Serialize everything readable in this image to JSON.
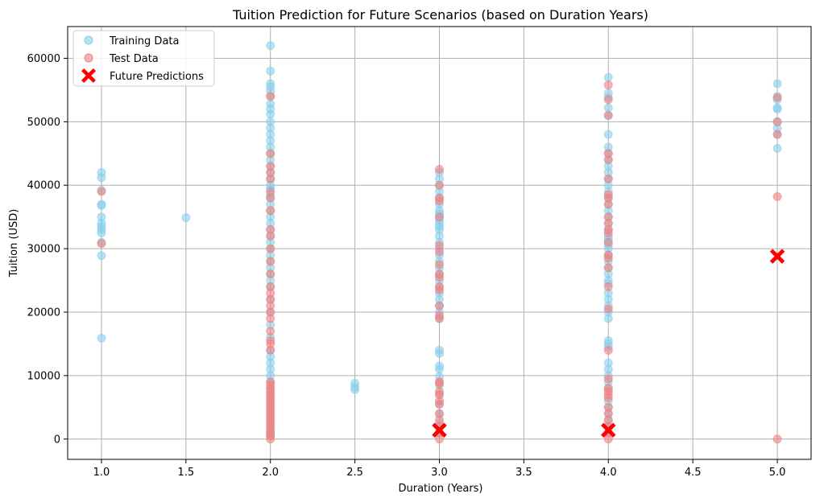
{
  "chart_data": {
    "type": "scatter",
    "title": "Tuition Prediction for Future Scenarios (based on Duration Years)",
    "xlabel": "Duration (Years)",
    "ylabel": "Tuition (USD)",
    "xlim": [
      0.8,
      5.2
    ],
    "ylim": [
      -3200,
      65000
    ],
    "xticks": [
      "1.0",
      "1.5",
      "2.0",
      "2.5",
      "3.0",
      "3.5",
      "4.0",
      "4.5",
      "5.0"
    ],
    "yticks": [
      "0",
      "10000",
      "20000",
      "30000",
      "40000",
      "50000",
      "60000"
    ],
    "grid": true,
    "legend_position": "top-left",
    "series": [
      {
        "name": "Training Data",
        "color": "#87CEEB",
        "marker": "circle",
        "points": [
          [
            1.0,
            42000
          ],
          [
            1.0,
            41200
          ],
          [
            1.0,
            39200
          ],
          [
            1.0,
            37000
          ],
          [
            1.0,
            36800
          ],
          [
            1.0,
            35000
          ],
          [
            1.0,
            34000
          ],
          [
            1.0,
            33500
          ],
          [
            1.0,
            33000
          ],
          [
            1.0,
            32500
          ],
          [
            1.0,
            31000
          ],
          [
            1.0,
            28900
          ],
          [
            1.0,
            15900
          ],
          [
            1.5,
            34900
          ],
          [
            2.0,
            62000
          ],
          [
            2.0,
            58000
          ],
          [
            2.0,
            56000
          ],
          [
            2.0,
            55500
          ],
          [
            2.0,
            54800
          ],
          [
            2.0,
            54000
          ],
          [
            2.0,
            52800
          ],
          [
            2.0,
            52000
          ],
          [
            2.0,
            51200
          ],
          [
            2.0,
            50000
          ],
          [
            2.0,
            49000
          ],
          [
            2.0,
            48000
          ],
          [
            2.0,
            47000
          ],
          [
            2.0,
            46000
          ],
          [
            2.0,
            45000
          ],
          [
            2.0,
            44000
          ],
          [
            2.0,
            43000
          ],
          [
            2.0,
            42000
          ],
          [
            2.0,
            41000
          ],
          [
            2.0,
            40000
          ],
          [
            2.0,
            39500
          ],
          [
            2.0,
            38500
          ],
          [
            2.0,
            38000
          ],
          [
            2.0,
            37000
          ],
          [
            2.0,
            36000
          ],
          [
            2.0,
            35000
          ],
          [
            2.0,
            34000
          ],
          [
            2.0,
            33000
          ],
          [
            2.0,
            32000
          ],
          [
            2.0,
            31000
          ],
          [
            2.0,
            30000
          ],
          [
            2.0,
            29000
          ],
          [
            2.0,
            28000
          ],
          [
            2.0,
            27000
          ],
          [
            2.0,
            26000
          ],
          [
            2.0,
            25000
          ],
          [
            2.0,
            24000
          ],
          [
            2.0,
            22000
          ],
          [
            2.0,
            20000
          ],
          [
            2.0,
            18000
          ],
          [
            2.0,
            16000
          ],
          [
            2.0,
            14000
          ],
          [
            2.0,
            13000
          ],
          [
            2.0,
            12000
          ],
          [
            2.0,
            11000
          ],
          [
            2.0,
            10000
          ],
          [
            2.0,
            9000
          ],
          [
            2.0,
            8000
          ],
          [
            2.0,
            7000
          ],
          [
            2.0,
            6000
          ],
          [
            2.0,
            5000
          ],
          [
            2.0,
            4000
          ],
          [
            2.0,
            3000
          ],
          [
            2.0,
            2000
          ],
          [
            2.0,
            1000
          ],
          [
            2.0,
            500
          ],
          [
            2.5,
            8800
          ],
          [
            2.5,
            8200
          ],
          [
            2.5,
            7800
          ],
          [
            3.0,
            42000
          ],
          [
            3.0,
            41000
          ],
          [
            3.0,
            40000
          ],
          [
            3.0,
            39000
          ],
          [
            3.0,
            38000
          ],
          [
            3.0,
            37000
          ],
          [
            3.0,
            36000
          ],
          [
            3.0,
            35500
          ],
          [
            3.0,
            35000
          ],
          [
            3.0,
            34500
          ],
          [
            3.0,
            34000
          ],
          [
            3.0,
            33500
          ],
          [
            3.0,
            33000
          ],
          [
            3.0,
            32000
          ],
          [
            3.0,
            31000
          ],
          [
            3.0,
            30000
          ],
          [
            3.0,
            29000
          ],
          [
            3.0,
            28000
          ],
          [
            3.0,
            27000
          ],
          [
            3.0,
            26000
          ],
          [
            3.0,
            25000
          ],
          [
            3.0,
            24000
          ],
          [
            3.0,
            23000
          ],
          [
            3.0,
            22000
          ],
          [
            3.0,
            21000
          ],
          [
            3.0,
            20000
          ],
          [
            3.0,
            19000
          ],
          [
            3.0,
            14000
          ],
          [
            3.0,
            13500
          ],
          [
            3.0,
            11500
          ],
          [
            3.0,
            11000
          ],
          [
            3.0,
            9800
          ],
          [
            3.0,
            8500
          ],
          [
            3.0,
            7000
          ],
          [
            3.0,
            5500
          ],
          [
            3.0,
            4000
          ],
          [
            3.0,
            2500
          ],
          [
            3.0,
            1000
          ],
          [
            4.0,
            57000
          ],
          [
            4.0,
            54500
          ],
          [
            4.0,
            53800
          ],
          [
            4.0,
            52200
          ],
          [
            4.0,
            51000
          ],
          [
            4.0,
            48000
          ],
          [
            4.0,
            46000
          ],
          [
            4.0,
            45000
          ],
          [
            4.0,
            44000
          ],
          [
            4.0,
            43000
          ],
          [
            4.0,
            42000
          ],
          [
            4.0,
            41000
          ],
          [
            4.0,
            40000
          ],
          [
            4.0,
            39000
          ],
          [
            4.0,
            38000
          ],
          [
            4.0,
            37000
          ],
          [
            4.0,
            36000
          ],
          [
            4.0,
            35000
          ],
          [
            4.0,
            34000
          ],
          [
            4.0,
            33000
          ],
          [
            4.0,
            32000
          ],
          [
            4.0,
            31500
          ],
          [
            4.0,
            31000
          ],
          [
            4.0,
            30500
          ],
          [
            4.0,
            30000
          ],
          [
            4.0,
            29000
          ],
          [
            4.0,
            28000
          ],
          [
            4.0,
            27000
          ],
          [
            4.0,
            26000
          ],
          [
            4.0,
            25000
          ],
          [
            4.0,
            24500
          ],
          [
            4.0,
            23000
          ],
          [
            4.0,
            22000
          ],
          [
            4.0,
            21000
          ],
          [
            4.0,
            20000
          ],
          [
            4.0,
            19000
          ],
          [
            4.0,
            15500
          ],
          [
            4.0,
            15000
          ],
          [
            4.0,
            14500
          ],
          [
            4.0,
            12000
          ],
          [
            4.0,
            11000
          ],
          [
            4.0,
            10000
          ],
          [
            4.0,
            9000
          ],
          [
            4.0,
            8000
          ],
          [
            4.0,
            6000
          ],
          [
            4.0,
            5000
          ],
          [
            4.0,
            4000
          ],
          [
            4.0,
            3000
          ],
          [
            4.0,
            2000
          ],
          [
            4.0,
            1000
          ],
          [
            5.0,
            56000
          ],
          [
            5.0,
            54000
          ],
          [
            5.0,
            53500
          ],
          [
            5.0,
            52200
          ],
          [
            5.0,
            52000
          ],
          [
            5.0,
            50000
          ],
          [
            5.0,
            49000
          ],
          [
            5.0,
            48000
          ],
          [
            5.0,
            45800
          ]
        ]
      },
      {
        "name": "Test Data",
        "color": "#F08080",
        "marker": "circle",
        "points": [
          [
            1.0,
            39000
          ],
          [
            1.0,
            30800
          ],
          [
            2.0,
            54000
          ],
          [
            2.0,
            45000
          ],
          [
            2.0,
            43000
          ],
          [
            2.0,
            42000
          ],
          [
            2.0,
            41000
          ],
          [
            2.0,
            39000
          ],
          [
            2.0,
            38000
          ],
          [
            2.0,
            36000
          ],
          [
            2.0,
            33000
          ],
          [
            2.0,
            32000
          ],
          [
            2.0,
            30000
          ],
          [
            2.0,
            28000
          ],
          [
            2.0,
            26000
          ],
          [
            2.0,
            24000
          ],
          [
            2.0,
            23000
          ],
          [
            2.0,
            22000
          ],
          [
            2.0,
            21000
          ],
          [
            2.0,
            20000
          ],
          [
            2.0,
            19000
          ],
          [
            2.0,
            17000
          ],
          [
            2.0,
            15500
          ],
          [
            2.0,
            15000
          ],
          [
            2.0,
            14000
          ],
          [
            2.0,
            9000
          ],
          [
            2.0,
            8500
          ],
          [
            2.0,
            8000
          ],
          [
            2.0,
            7500
          ],
          [
            2.0,
            7000
          ],
          [
            2.0,
            6500
          ],
          [
            2.0,
            6000
          ],
          [
            2.0,
            5500
          ],
          [
            2.0,
            5000
          ],
          [
            2.0,
            4500
          ],
          [
            2.0,
            4000
          ],
          [
            2.0,
            3500
          ],
          [
            2.0,
            3000
          ],
          [
            2.0,
            2500
          ],
          [
            2.0,
            2000
          ],
          [
            2.0,
            1500
          ],
          [
            2.0,
            1000
          ],
          [
            2.0,
            500
          ],
          [
            2.0,
            0
          ],
          [
            3.0,
            42500
          ],
          [
            3.0,
            40000
          ],
          [
            3.0,
            38000
          ],
          [
            3.0,
            37500
          ],
          [
            3.0,
            35000
          ],
          [
            3.0,
            30500
          ],
          [
            3.0,
            29500
          ],
          [
            3.0,
            27500
          ],
          [
            3.0,
            26000
          ],
          [
            3.0,
            25500
          ],
          [
            3.0,
            24000
          ],
          [
            3.0,
            23500
          ],
          [
            3.0,
            21000
          ],
          [
            3.0,
            19500
          ],
          [
            3.0,
            19000
          ],
          [
            3.0,
            9000
          ],
          [
            3.0,
            8800
          ],
          [
            3.0,
            7500
          ],
          [
            3.0,
            7000
          ],
          [
            3.0,
            6000
          ],
          [
            3.0,
            5500
          ],
          [
            3.0,
            4000
          ],
          [
            3.0,
            3000
          ],
          [
            3.0,
            2000
          ],
          [
            3.0,
            1000
          ],
          [
            3.0,
            0
          ],
          [
            4.0,
            55800
          ],
          [
            4.0,
            53500
          ],
          [
            4.0,
            51000
          ],
          [
            4.0,
            45000
          ],
          [
            4.0,
            44000
          ],
          [
            4.0,
            41000
          ],
          [
            4.0,
            38500
          ],
          [
            4.0,
            38000
          ],
          [
            4.0,
            37000
          ],
          [
            4.0,
            35000
          ],
          [
            4.0,
            34000
          ],
          [
            4.0,
            33000
          ],
          [
            4.0,
            32500
          ],
          [
            4.0,
            31000
          ],
          [
            4.0,
            29000
          ],
          [
            4.0,
            28500
          ],
          [
            4.0,
            27000
          ],
          [
            4.0,
            24000
          ],
          [
            4.0,
            20500
          ],
          [
            4.0,
            14000
          ],
          [
            4.0,
            9500
          ],
          [
            4.0,
            8000
          ],
          [
            4.0,
            7500
          ],
          [
            4.0,
            7000
          ],
          [
            4.0,
            6500
          ],
          [
            4.0,
            5000
          ],
          [
            4.0,
            4000
          ],
          [
            4.0,
            3000
          ],
          [
            4.0,
            2000
          ],
          [
            4.0,
            1000
          ],
          [
            4.0,
            0
          ],
          [
            5.0,
            53800
          ],
          [
            5.0,
            50000
          ],
          [
            5.0,
            48000
          ],
          [
            5.0,
            38200
          ],
          [
            5.0,
            0
          ]
        ]
      },
      {
        "name": "Future Predictions",
        "color": "#FF0000",
        "marker": "x",
        "points": [
          [
            3.0,
            1400
          ],
          [
            4.0,
            1400
          ],
          [
            5.0,
            28800
          ]
        ]
      }
    ]
  }
}
